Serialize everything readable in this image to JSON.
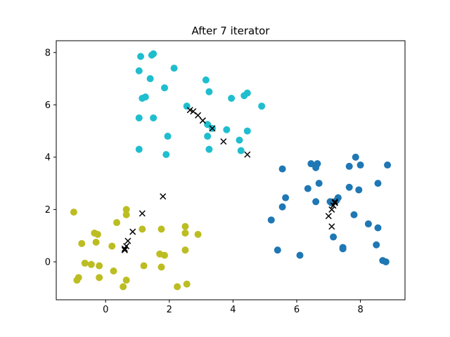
{
  "chart_data": {
    "type": "scatter",
    "title": "After 7 iterator",
    "xlabel": "",
    "ylabel": "",
    "xlim": [
      -1.55,
      9.4
    ],
    "ylim": [
      -1.45,
      8.45
    ],
    "xticks": [
      0,
      2,
      4,
      6,
      8
    ],
    "yticks": [
      0,
      2,
      4,
      6,
      8
    ],
    "grid": false,
    "series": [
      {
        "color": "#1fbecf",
        "marker": "circle",
        "points": [
          [
            1.5,
            7.95
          ],
          [
            1.45,
            7.9
          ],
          [
            1.1,
            7.85
          ],
          [
            2.15,
            7.4
          ],
          [
            1.05,
            7.3
          ],
          [
            1.4,
            7.0
          ],
          [
            3.15,
            6.95
          ],
          [
            1.85,
            6.65
          ],
          [
            3.25,
            6.5
          ],
          [
            4.45,
            6.45
          ],
          [
            4.35,
            6.35
          ],
          [
            1.15,
            6.25
          ],
          [
            1.25,
            6.3
          ],
          [
            3.95,
            6.25
          ],
          [
            4.9,
            5.95
          ],
          [
            2.55,
            5.95
          ],
          [
            1.05,
            5.5
          ],
          [
            1.5,
            5.5
          ],
          [
            3.2,
            5.25
          ],
          [
            3.35,
            5.1
          ],
          [
            3.8,
            5.05
          ],
          [
            4.45,
            5.0
          ],
          [
            3.2,
            4.8
          ],
          [
            1.95,
            4.8
          ],
          [
            4.2,
            4.65
          ],
          [
            1.05,
            4.3
          ],
          [
            3.25,
            4.3
          ],
          [
            4.25,
            4.25
          ],
          [
            1.9,
            4.1
          ]
        ]
      },
      {
        "color": "#1f77b4",
        "marker": "circle",
        "points": [
          [
            7.85,
            4.0
          ],
          [
            6.45,
            3.75
          ],
          [
            6.65,
            3.75
          ],
          [
            8.0,
            3.7
          ],
          [
            8.85,
            3.7
          ],
          [
            7.65,
            3.65
          ],
          [
            6.6,
            3.6
          ],
          [
            5.55,
            3.55
          ],
          [
            6.7,
            3.0
          ],
          [
            8.55,
            3.0
          ],
          [
            7.65,
            2.85
          ],
          [
            6.35,
            2.8
          ],
          [
            7.95,
            2.75
          ],
          [
            5.65,
            2.45
          ],
          [
            7.3,
            2.45
          ],
          [
            7.25,
            2.35
          ],
          [
            6.6,
            2.3
          ],
          [
            7.05,
            2.3
          ],
          [
            7.1,
            2.25
          ],
          [
            5.55,
            2.1
          ],
          [
            7.8,
            1.8
          ],
          [
            5.2,
            1.6
          ],
          [
            8.25,
            1.45
          ],
          [
            8.55,
            1.3
          ],
          [
            7.15,
            0.95
          ],
          [
            8.5,
            0.65
          ],
          [
            7.45,
            0.55
          ],
          [
            7.45,
            0.5
          ],
          [
            5.4,
            0.45
          ],
          [
            6.1,
            0.25
          ],
          [
            8.7,
            0.05
          ],
          [
            8.8,
            0.0
          ]
        ]
      },
      {
        "color": "#bcbd22",
        "marker": "circle",
        "points": [
          [
            0.65,
            2.0
          ],
          [
            0.65,
            1.8
          ],
          [
            -1.0,
            1.9
          ],
          [
            0.35,
            1.5
          ],
          [
            1.15,
            1.25
          ],
          [
            1.75,
            1.25
          ],
          [
            2.5,
            1.35
          ],
          [
            2.5,
            1.1
          ],
          [
            2.9,
            1.05
          ],
          [
            -0.35,
            1.1
          ],
          [
            -0.25,
            1.05
          ],
          [
            -0.3,
            0.75
          ],
          [
            -0.75,
            0.7
          ],
          [
            0.2,
            0.6
          ],
          [
            2.5,
            0.45
          ],
          [
            1.7,
            0.3
          ],
          [
            1.85,
            0.25
          ],
          [
            -0.65,
            -0.05
          ],
          [
            -0.45,
            -0.1
          ],
          [
            -0.2,
            -0.15
          ],
          [
            1.2,
            -0.15
          ],
          [
            1.75,
            -0.2
          ],
          [
            0.25,
            -0.35
          ],
          [
            -0.85,
            -0.6
          ],
          [
            -0.9,
            -0.7
          ],
          [
            -0.2,
            -0.6
          ],
          [
            0.65,
            -0.7
          ],
          [
            2.55,
            -0.85
          ],
          [
            0.55,
            -0.95
          ],
          [
            2.25,
            -0.95
          ]
        ]
      },
      {
        "color": "#000000",
        "marker": "x",
        "points": [
          [
            2.65,
            5.8
          ],
          [
            2.75,
            5.75
          ],
          [
            2.9,
            5.6
          ],
          [
            3.05,
            5.4
          ],
          [
            3.35,
            5.1
          ],
          [
            3.7,
            4.6
          ],
          [
            4.45,
            4.1
          ],
          [
            7.2,
            2.3
          ],
          [
            7.2,
            2.25
          ],
          [
            7.15,
            2.15
          ],
          [
            7.1,
            2.0
          ],
          [
            7.0,
            1.75
          ],
          [
            7.1,
            1.35
          ],
          [
            1.8,
            2.5
          ],
          [
            1.15,
            1.85
          ],
          [
            0.85,
            1.15
          ],
          [
            0.7,
            0.8
          ],
          [
            0.65,
            0.6
          ],
          [
            0.6,
            0.5
          ],
          [
            0.6,
            0.45
          ]
        ]
      }
    ]
  }
}
